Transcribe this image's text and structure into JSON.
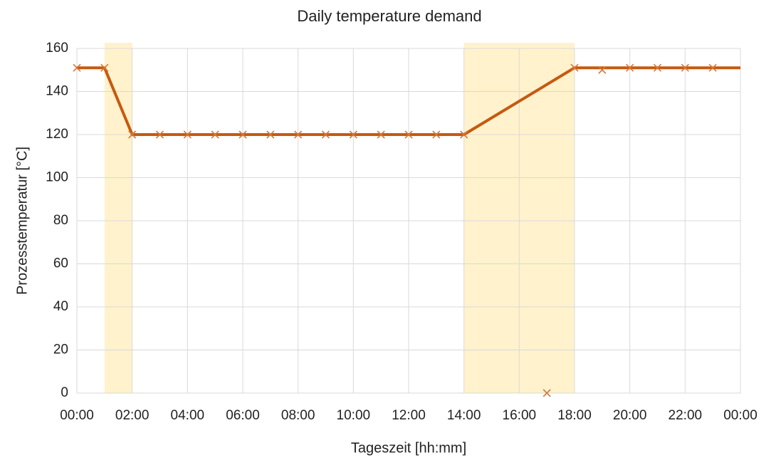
{
  "chart_data": {
    "type": "line",
    "title": "Daily temperature demand",
    "xlabel": "Tageszeit [hh:mm]",
    "ylabel": "Prozesstemperatur [°C]",
    "xlim": [
      0,
      24
    ],
    "ylim": [
      0,
      160
    ],
    "xticks": [
      {
        "value": 0,
        "label": "00:00"
      },
      {
        "value": 2,
        "label": "02:00"
      },
      {
        "value": 4,
        "label": "04:00"
      },
      {
        "value": 6,
        "label": "06:00"
      },
      {
        "value": 8,
        "label": "08:00"
      },
      {
        "value": 10,
        "label": "10:00"
      },
      {
        "value": 12,
        "label": "12:00"
      },
      {
        "value": 14,
        "label": "14:00"
      },
      {
        "value": 16,
        "label": "16:00"
      },
      {
        "value": 18,
        "label": "18:00"
      },
      {
        "value": 20,
        "label": "20:00"
      },
      {
        "value": 22,
        "label": "22:00"
      },
      {
        "value": 24,
        "label": "00:00"
      }
    ],
    "yticks": [
      0,
      20,
      40,
      60,
      80,
      100,
      120,
      140,
      160
    ],
    "grid": true,
    "highlights": [
      [
        1,
        2
      ],
      [
        14,
        18
      ]
    ],
    "highlight_color": "#fff2cc",
    "series": [
      {
        "color": "#c55a11",
        "style": "line",
        "x": [
          0,
          1,
          2,
          14,
          18,
          24
        ],
        "values": [
          151,
          151,
          120,
          120,
          151,
          151
        ]
      },
      {
        "color": "#d4783a",
        "style": "markers",
        "x": [
          0,
          1,
          2,
          3,
          4,
          5,
          6,
          7,
          8,
          9,
          10,
          11,
          12,
          13,
          14,
          15,
          16,
          17,
          18,
          19,
          20,
          21,
          22,
          23
        ],
        "values": [
          151,
          151,
          120,
          120,
          120,
          120,
          120,
          120,
          120,
          120,
          120,
          120,
          120,
          120,
          120,
          null,
          null,
          0,
          151,
          150,
          151,
          151,
          151,
          151
        ]
      }
    ]
  }
}
